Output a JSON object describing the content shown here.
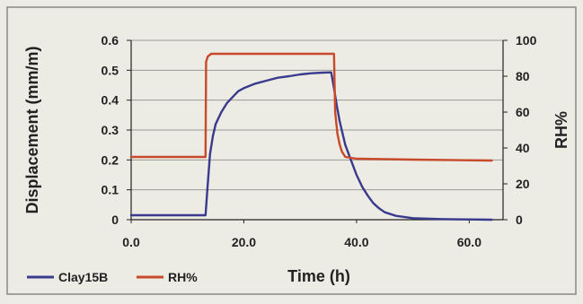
{
  "chart_data": {
    "type": "line",
    "title": "",
    "xlabel": "Time (h)",
    "ylabel": "Displacement (mm/m)",
    "y2label": "RH%",
    "xlim": [
      0,
      66
    ],
    "ylim": [
      0,
      0.6
    ],
    "y2lim": [
      0,
      100
    ],
    "x_ticks": [
      "0.0",
      "20.0",
      "40.0",
      "60.0"
    ],
    "y_ticks": [
      "0",
      "0.1",
      "0.2",
      "0.3",
      "0.4",
      "0.5",
      "0.6"
    ],
    "y2_ticks": [
      "0",
      "20",
      "40",
      "60",
      "80",
      "100"
    ],
    "grid": "horizontal",
    "legend": "bottom-left",
    "series": [
      {
        "name": "Clay15B",
        "axis": "left",
        "color": "#3a3a8e",
        "x": [
          0,
          5,
          10,
          13.2,
          13.6,
          14,
          14.5,
          15,
          16,
          17,
          18,
          19,
          20,
          22,
          24,
          26,
          28,
          30,
          32,
          34,
          35.5,
          36,
          36.5,
          37,
          37.5,
          38,
          39,
          40,
          41,
          42,
          43,
          44,
          45,
          47,
          50,
          55,
          60,
          64
        ],
        "values": [
          0.015,
          0.015,
          0.015,
          0.015,
          0.12,
          0.22,
          0.28,
          0.32,
          0.36,
          0.39,
          0.41,
          0.43,
          0.44,
          0.455,
          0.465,
          0.475,
          0.48,
          0.486,
          0.49,
          0.492,
          0.493,
          0.44,
          0.38,
          0.33,
          0.29,
          0.25,
          0.2,
          0.15,
          0.11,
          0.08,
          0.055,
          0.038,
          0.025,
          0.013,
          0.005,
          0.002,
          0.001,
          0.0
        ]
      },
      {
        "name": "RH%",
        "axis": "right",
        "color": "#c84a2a",
        "x": [
          0,
          13.2,
          13.3,
          13.6,
          14.2,
          20,
          30,
          36,
          36.2,
          36.6,
          37,
          37.4,
          38,
          40,
          50,
          64
        ],
        "values": [
          35,
          35,
          88,
          91,
          92.5,
          92.5,
          92.5,
          92.5,
          60,
          48,
          42,
          38,
          35,
          34,
          33.5,
          33
        ]
      }
    ]
  }
}
